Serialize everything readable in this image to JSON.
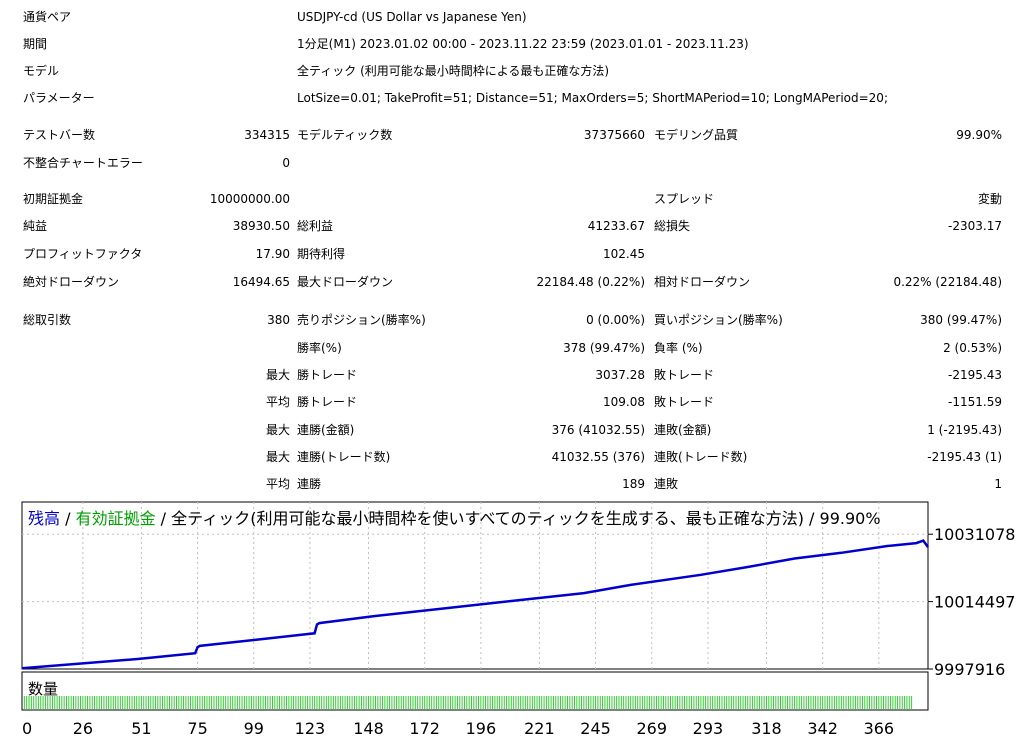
{
  "header": {
    "symbol_label": "通貨ペア",
    "symbol_value": "USDJPY-cd (US Dollar vs Japanese Yen)",
    "period_label": "期間",
    "period_value": "1分足(M1) 2023.01.02 00:00 - 2023.11.22 23:59 (2023.01.01 - 2023.11.23)",
    "model_label": "モデル",
    "model_value": "全ティック (利用可能な最小時間枠による最も正確な方法)",
    "params_label": "パラメーター",
    "params_value": "LotSize=0.01; TakeProfit=51; Distance=51; MaxOrders=5; ShortMAPeriod=10; LongMAPeriod=20;"
  },
  "stats": {
    "bars_label": "テストバー数",
    "bars_value": "334315",
    "ticks_label": "モデルティック数",
    "ticks_value": "37375660",
    "quality_label": "モデリング品質",
    "quality_value": "99.90%",
    "errors_label": "不整合チャートエラー",
    "errors_value": "0",
    "deposit_label": "初期証拠金",
    "deposit_value": "10000000.00",
    "spread_label": "スプレッド",
    "spread_value": "変動",
    "net_label": "純益",
    "net_value": "38930.50",
    "gross_profit_label": "総利益",
    "gross_profit_value": "41233.67",
    "gross_loss_label": "総損失",
    "gross_loss_value": "-2303.17",
    "pf_label": "プロフィットファクタ",
    "pf_value": "17.90",
    "expected_label": "期待利得",
    "expected_value": "102.45",
    "abs_dd_label": "絶対ドローダウン",
    "abs_dd_value": "16494.65",
    "max_dd_label": "最大ドローダウン",
    "max_dd_value": "22184.48 (0.22%)",
    "rel_dd_label": "相対ドローダウン",
    "rel_dd_value": "0.22% (22184.48)",
    "trades_label": "総取引数",
    "trades_value": "380",
    "short_label": "売りポジション(勝率%)",
    "short_value": "0 (0.00%)",
    "long_label": "買いポジション(勝率%)",
    "long_value": "380 (99.47%)",
    "win_rate_label": "勝率(%)",
    "win_rate_value": "378 (99.47%)",
    "loss_rate_label": "負率 (%)",
    "loss_rate_value": "2 (0.53%)",
    "max_label": "最大",
    "avg_label": "平均",
    "max_win_label": "勝トレード",
    "max_win_value": "3037.28",
    "max_loss_label": "敗トレード",
    "max_loss_value": "-2195.43",
    "avg_win_label": "勝トレード",
    "avg_win_value": "109.08",
    "avg_loss_label": "敗トレード",
    "avg_loss_value": "-1151.59",
    "cons_wins_amount_label": "連勝(金額)",
    "cons_wins_amount_value": "376 (41032.55)",
    "cons_losses_amount_label": "連敗(金額)",
    "cons_losses_amount_value": "1 (-2195.43)",
    "cons_wins_count_label": "連勝(トレード数)",
    "cons_wins_count_value": "41032.55 (376)",
    "cons_losses_count_label": "連敗(トレード数)",
    "cons_losses_count_value": "-2195.43 (1)",
    "avg_cons_wins_label": "連勝",
    "avg_cons_wins_value": "189",
    "avg_cons_losses_label": "連敗",
    "avg_cons_losses_value": "1"
  },
  "chart_data": {
    "type": "line",
    "title_parts": [
      "残高",
      " / ",
      "有効証拠金",
      " / 全ティック(利用可能な最小時間枠を使いすべてのティックを生成する、最も正確な方法) / 99.90%"
    ],
    "colors": {
      "balance": "#0000cc",
      "equity": "#00a000",
      "text": "#000000",
      "grid": "#c0c0c0",
      "volume": "#33cc33"
    },
    "x_ticks": [
      0,
      26,
      51,
      75,
      99,
      123,
      148,
      172,
      196,
      221,
      245,
      269,
      293,
      318,
      342,
      366
    ],
    "y_ticks": [
      "10031078",
      "10014497",
      "9997916"
    ],
    "y_tick_values": [
      10031078,
      10014497,
      9997916
    ],
    "ylim": [
      9997916,
      10039000
    ],
    "xlim": [
      0,
      387
    ],
    "series": [
      {
        "name": "残高",
        "x": [
          0,
          50,
          74,
          75,
          76,
          100,
          125,
          126,
          127,
          150,
          180,
          210,
          240,
          260,
          290,
          310,
          330,
          350,
          370,
          382,
          385,
          387
        ],
        "y": [
          9998100,
          10000400,
          10001800,
          10003300,
          10003600,
          10005100,
          10006700,
          10008900,
          10009200,
          10010900,
          10012800,
          10014700,
          10016600,
          10018600,
          10021100,
          10023000,
          10025100,
          10026500,
          10028200,
          10028900,
          10029500,
          10027900
        ]
      }
    ],
    "volume_label": "数量",
    "volume_count": 380
  }
}
